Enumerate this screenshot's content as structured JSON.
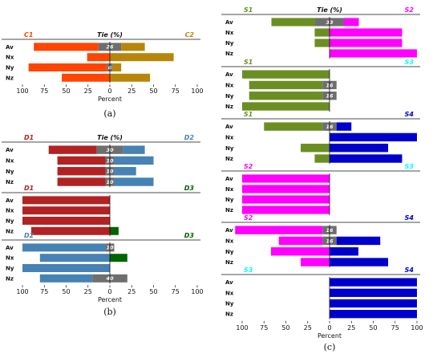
{
  "chart_data": [
    {
      "type": "bar",
      "id": "a1",
      "subtitle": "(a)",
      "left_name": "C1",
      "right_name": "C2",
      "tie_label": "Tie (%)",
      "left_color": "#ff4500",
      "right_color": "#b8860b",
      "categories": [
        "Av",
        "Nx",
        "Ny",
        "Nz"
      ],
      "left": [
        74,
        26,
        90,
        55
      ],
      "tie": [
        26,
        0,
        6,
        0
      ],
      "right": [
        27,
        73,
        10,
        46
      ],
      "tie_labels": [
        "26",
        "",
        "6",
        ""
      ],
      "xticks": [
        "100",
        "75",
        "50",
        "25",
        "0",
        "25",
        "50",
        "75",
        "100"
      ],
      "xlabel": "Percent"
    },
    {
      "type": "bar",
      "id": "b1",
      "left_name": "D1",
      "right_name": "D2",
      "tie_label": "Tie (%)",
      "left_color": "#b22222",
      "right_color": "#4682b4",
      "categories": [
        "Av",
        "Nx",
        "Ny",
        "Nz"
      ],
      "left": [
        55,
        55,
        55,
        55
      ],
      "tie": [
        30,
        10,
        10,
        10
      ],
      "right": [
        25,
        45,
        25,
        45
      ],
      "tie_labels": [
        "30",
        "10",
        "10",
        "10"
      ],
      "xlabel": ""
    },
    {
      "type": "bar",
      "id": "b2",
      "left_name": "D1",
      "right_name": "D3",
      "tie_label": "",
      "left_color": "#b22222",
      "right_color": "#006400",
      "categories": [
        "Av",
        "Nx",
        "Ny",
        "Nz"
      ],
      "left": [
        100,
        100,
        100,
        90
      ],
      "tie": [
        0,
        0,
        0,
        0
      ],
      "right": [
        0,
        0,
        0,
        10
      ],
      "tie_labels": [
        "",
        "",
        "",
        ""
      ],
      "xlabel": ""
    },
    {
      "type": "bar",
      "id": "b3",
      "subtitle": "(b)",
      "left_name": "D2",
      "right_name": "D3",
      "tie_label": "",
      "left_color": "#4682b4",
      "right_color": "#006400",
      "categories": [
        "Av",
        "Nx",
        "Ny",
        "Nz"
      ],
      "left": [
        95,
        80,
        100,
        60
      ],
      "tie": [
        10,
        0,
        0,
        40
      ],
      "right": [
        0,
        20,
        0,
        0
      ],
      "tie_labels": [
        "10",
        "",
        "",
        "40"
      ],
      "xticks": [
        "100",
        "75",
        "50",
        "25",
        "0",
        "25",
        "50",
        "75",
        "100"
      ],
      "xlabel": "Percent"
    },
    {
      "type": "bar",
      "id": "c1",
      "left_name": "S1",
      "right_name": "S2",
      "tie_label": "Tie (%)",
      "left_color": "#6b8e23",
      "right_color": "#ff00ff",
      "categories": [
        "Av",
        "Nx",
        "Ny",
        "Nz"
      ],
      "left": [
        50,
        17,
        17,
        0
      ],
      "tie": [
        33,
        0,
        0,
        0
      ],
      "right": [
        17,
        83,
        83,
        100
      ],
      "tie_labels": [
        "33",
        "",
        "",
        ""
      ],
      "xlabel": ""
    },
    {
      "type": "bar",
      "id": "c2",
      "left_name": "S1",
      "right_name": "S3",
      "tie_label": "",
      "left_color": "#6b8e23",
      "right_color": "#00ffff",
      "categories": [
        "Av",
        "Nx",
        "Ny",
        "Nz"
      ],
      "left": [
        100,
        84,
        84,
        100
      ],
      "tie": [
        0,
        16,
        16,
        0
      ],
      "right": [
        0,
        0,
        0,
        0
      ],
      "tie_labels": [
        "",
        "16",
        "16",
        ""
      ],
      "xlabel": ""
    },
    {
      "type": "bar",
      "id": "c3",
      "left_name": "S1",
      "right_name": "S4",
      "tie_label": "",
      "left_color": "#6b8e23",
      "right_color": "#0000cd",
      "categories": [
        "Av",
        "Nx",
        "Ny",
        "Nz"
      ],
      "left": [
        67,
        0,
        33,
        17
      ],
      "tie": [
        16,
        0,
        0,
        0
      ],
      "right": [
        17,
        100,
        67,
        83
      ],
      "tie_labels": [
        "16",
        "",
        "",
        ""
      ],
      "xlabel": ""
    },
    {
      "type": "bar",
      "id": "c4",
      "left_name": "S2",
      "right_name": "S3",
      "tie_label": "",
      "left_color": "#ff00ff",
      "right_color": "#00ffff",
      "categories": [
        "Av",
        "Nx",
        "Ny",
        "Nz"
      ],
      "left": [
        100,
        100,
        100,
        100
      ],
      "tie": [
        0,
        0,
        0,
        0
      ],
      "right": [
        0,
        0,
        0,
        0
      ],
      "tie_labels": [
        "",
        "",
        "",
        ""
      ],
      "xlabel": ""
    },
    {
      "type": "bar",
      "id": "c5",
      "left_name": "S2",
      "right_name": "S4",
      "tie_label": "",
      "left_color": "#ff00ff",
      "right_color": "#0000cd",
      "categories": [
        "Av",
        "Nx",
        "Ny",
        "Nz"
      ],
      "left": [
        100,
        50,
        67,
        33
      ],
      "tie": [
        16,
        16,
        0,
        0
      ],
      "right": [
        0,
        50,
        33,
        67
      ],
      "tie_labels": [
        "16",
        "16",
        "",
        ""
      ],
      "xlabel": ""
    },
    {
      "type": "bar",
      "id": "c6",
      "subtitle": "(c)",
      "left_name": "S3",
      "right_name": "S4",
      "tie_label": "",
      "left_color": "#00ffff",
      "right_color": "#0000cd",
      "categories": [
        "Av",
        "Nx",
        "Ny",
        "Nz"
      ],
      "left": [
        0,
        0,
        0,
        0
      ],
      "tie": [
        0,
        0,
        0,
        0
      ],
      "right": [
        100,
        100,
        100,
        100
      ],
      "tie_labels": [
        "",
        "",
        "",
        ""
      ],
      "xticks": [
        "100",
        "75",
        "50",
        "25",
        "0",
        "25",
        "50",
        "75",
        "100"
      ],
      "xlabel": "Percent"
    }
  ]
}
